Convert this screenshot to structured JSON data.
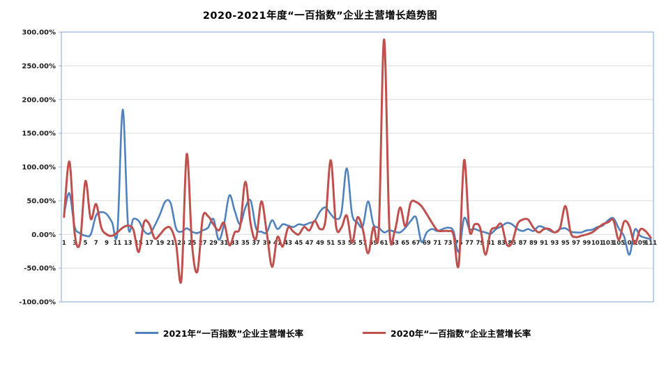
{
  "chart_data": {
    "type": "line",
    "title": "2020-2021年度“一百指数”企业主营增长趋势图",
    "xlabel": "",
    "ylabel": "",
    "x_start": 1,
    "x_step": 1,
    "n_points": 111,
    "ylim": [
      -100,
      300
    ],
    "y_unit": "percent",
    "grid": true,
    "legend_position": "bottom",
    "ytick_labels": [
      "300.00%",
      "250.00%",
      "200.00%",
      "150.00%",
      "100.00%",
      "50.00%",
      "0.00%",
      "-50.00%",
      "-100.00%"
    ],
    "ytick_values": [
      300,
      250,
      200,
      150,
      100,
      50,
      0,
      -50,
      -100
    ],
    "xtick_labels": [
      "1",
      "3",
      "5",
      "7",
      "9",
      "11",
      "13",
      "15",
      "17",
      "19",
      "21",
      "23",
      "25",
      "27",
      "29",
      "31",
      "33",
      "35",
      "37",
      "39",
      "41",
      "43",
      "45",
      "47",
      "49",
      "51",
      "53",
      "55",
      "57",
      "59",
      "61",
      "63",
      "65",
      "67",
      "69",
      "71",
      "73",
      "75",
      "77",
      "79",
      "81",
      "83",
      "85",
      "87",
      "89",
      "91",
      "93",
      "95",
      "97",
      "99",
      "101",
      "103",
      "105",
      "107",
      "109",
      "111"
    ],
    "series": [
      {
        "name": "2021年“一百指数”企业主营增长率",
        "color": "#4F81BD",
        "values": [
          30,
          61,
          11,
          2,
          -2,
          0,
          28,
          33,
          30,
          18,
          3,
          185,
          14,
          23,
          20,
          5,
          1,
          13,
          30,
          49,
          46,
          9,
          4,
          9,
          4,
          2,
          6,
          10,
          23,
          -8,
          15,
          58,
          35,
          15,
          40,
          50,
          9,
          4,
          3,
          21,
          8,
          15,
          13,
          11,
          15,
          14,
          17,
          20,
          34,
          40,
          30,
          23,
          32,
          98,
          30,
          18,
          12,
          49,
          15,
          10,
          3,
          6,
          4,
          3,
          10,
          20,
          25,
          -11,
          3,
          8,
          5,
          8,
          10,
          5,
          -26,
          24,
          8,
          8,
          5,
          3,
          1,
          8,
          12,
          17,
          15,
          8,
          5,
          8,
          5,
          12,
          10,
          6,
          3,
          8,
          9,
          4,
          3,
          3,
          6,
          7,
          11,
          13,
          21,
          24,
          9,
          -3,
          -30,
          7,
          -2,
          -5,
          -7
        ]
      },
      {
        "name": "2020年“一百指数”企业主营增长率",
        "color": "#C0504D",
        "values": [
          26,
          108,
          1,
          -12,
          79,
          23,
          45,
          10,
          0,
          -2,
          3,
          10,
          13,
          7,
          -26,
          18,
          15,
          -6,
          0,
          9,
          9,
          -14,
          -67,
          119,
          -15,
          -55,
          25,
          27,
          15,
          6,
          17,
          -16,
          3,
          11,
          78,
          15,
          -6,
          49,
          3,
          -48,
          -4,
          -18,
          10,
          4,
          0,
          11,
          6,
          20,
          8,
          20,
          110,
          12,
          10,
          28,
          -12,
          25,
          8,
          -28,
          11,
          5,
          289,
          8,
          5,
          40,
          12,
          47,
          48,
          42,
          30,
          17,
          6,
          5,
          5,
          0,
          -45,
          110,
          6,
          15,
          10,
          -30,
          5,
          10,
          15,
          -15,
          -12,
          15,
          22,
          22,
          10,
          3,
          8,
          8,
          3,
          10,
          42,
          2,
          -4,
          -2,
          0,
          3,
          9,
          15,
          18,
          21,
          -8,
          19,
          12,
          -14,
          7,
          5,
          -5
        ]
      }
    ],
    "style": {
      "grid_color": "#DCDCDC",
      "plot_border_color": "#95B3D7",
      "background": "#FFFFFF",
      "tick_color": "#95B3D7"
    }
  }
}
